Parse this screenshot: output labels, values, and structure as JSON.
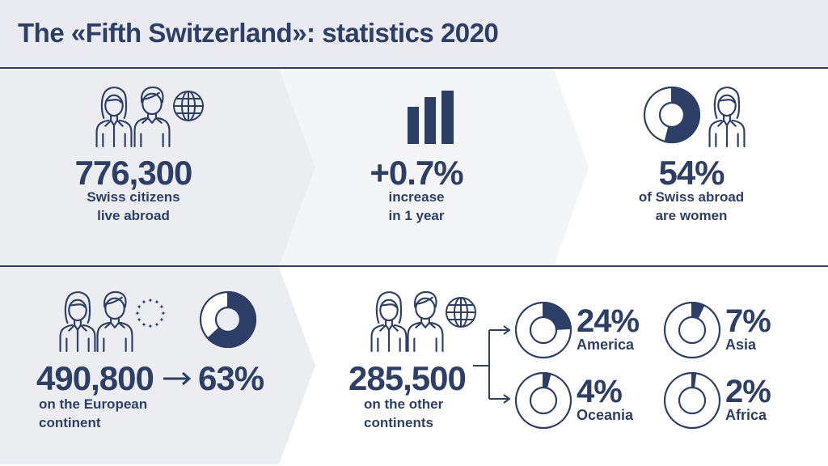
{
  "title": "The «Fifth Switzerland»: statistics 2020",
  "colors": {
    "accent": "#2d3f66",
    "panel_dark": "#ebedf1",
    "panel_light": "#f4f5f7",
    "header_bg": "#e9ebf0"
  },
  "top": {
    "abroad": {
      "value": "776,300",
      "label_line1": "Swiss citizens",
      "label_line2": "live abroad",
      "icon": "people-globe-icon"
    },
    "increase": {
      "value": "+0.7%",
      "label_line1": "increase",
      "label_line2": "in 1 year",
      "icon": "bar-chart-icon"
    },
    "women": {
      "value": "54%",
      "label_line1": "of Swiss abroad",
      "label_line2": "are women",
      "share": 54,
      "icon": "woman-icon"
    }
  },
  "bottom": {
    "europe": {
      "value": "490,800",
      "share_label": "63%",
      "share": 63,
      "label_line1": "on the European",
      "label_line2": "continent",
      "icon": "eu-stars-icon"
    },
    "other": {
      "value": "285,500",
      "label_line1": "on the other",
      "label_line2": "continents",
      "icon": "people-globe-icon"
    },
    "regions": [
      {
        "name": "America",
        "label": "24%",
        "share": 24
      },
      {
        "name": "Asia",
        "label": "7%",
        "share": 7
      },
      {
        "name": "Oceania",
        "label": "4%",
        "share": 4
      },
      {
        "name": "Africa",
        "label": "2%",
        "share": 2
      }
    ]
  }
}
